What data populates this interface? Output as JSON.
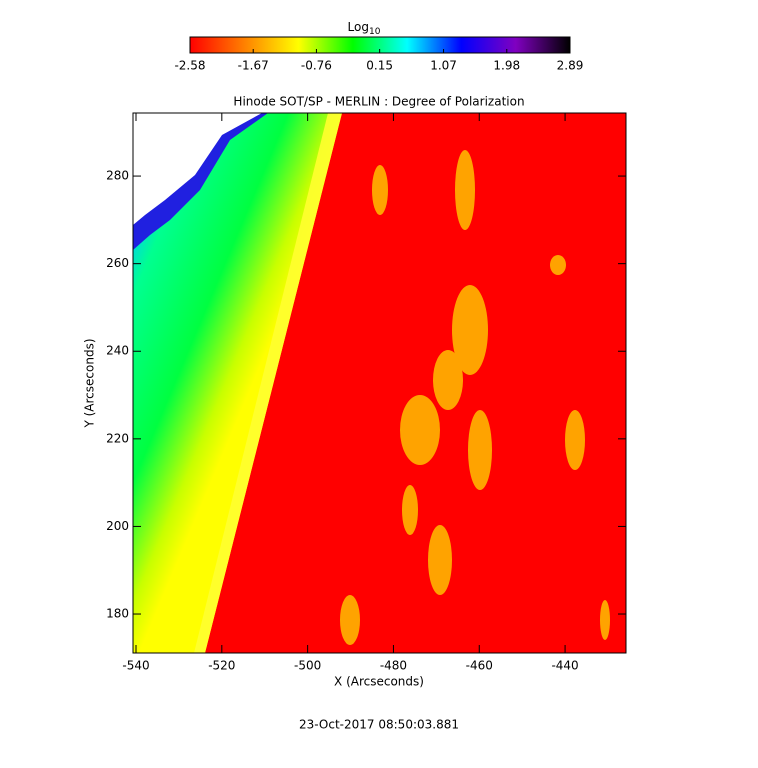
{
  "chart_data": {
    "type": "image",
    "title": "Hinode SOT/SP - MERLIN : Degree of Polarization",
    "x_label": "X (Arcseconds)",
    "y_label": "Y (Arcseconds)",
    "xlim": [
      -540.7,
      -425.8
    ],
    "xticks": [
      -540,
      -520,
      -500,
      -480,
      -460,
      -440
    ],
    "ylim": [
      171.1,
      294.4
    ],
    "yticks": [
      180,
      200,
      220,
      240,
      260,
      280
    ],
    "colorbar": {
      "label": "Log",
      "label_subscript": "10",
      "lim": [
        -2.58,
        2.89
      ],
      "ticks": [
        -2.58,
        -1.67,
        -0.76,
        0.15,
        1.07,
        1.98,
        2.89
      ],
      "colormap": [
        "#ff0000",
        "#ff8000",
        "#ffff00",
        "#00ff00",
        "#00ffff",
        "#0000ff",
        "#8000c0",
        "#000000"
      ]
    },
    "timestamp": "23-Oct-2017 08:50:03.881"
  }
}
